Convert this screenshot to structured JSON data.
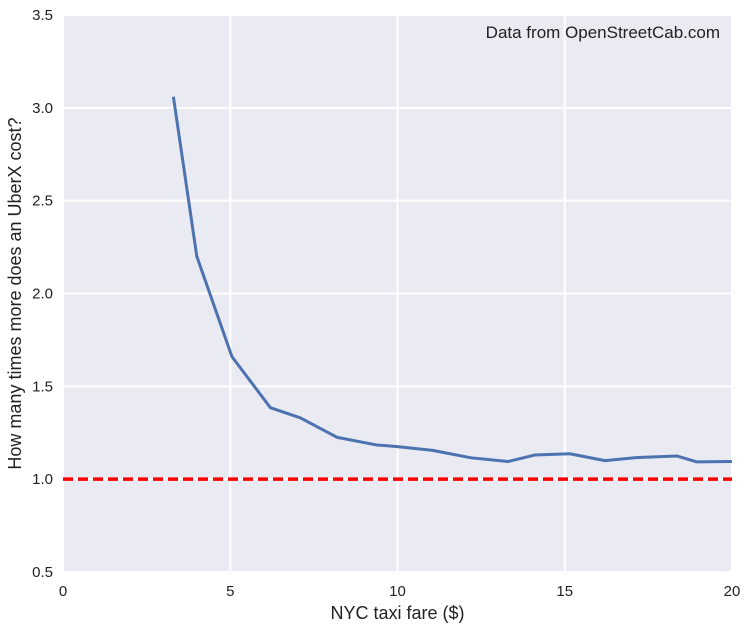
{
  "chart_data": {
    "type": "line",
    "title": "",
    "xlabel": "NYC taxi fare ($)",
    "ylabel": "How many times more does an UberX cost?",
    "xlim": [
      0,
      20
    ],
    "ylim": [
      0.5,
      3.5
    ],
    "xticks": [
      0,
      5,
      10,
      15,
      20
    ],
    "xtick_labels": [
      "0",
      "5",
      "10",
      "15",
      "20"
    ],
    "yticks": [
      0.5,
      1.0,
      1.5,
      2.0,
      2.5,
      3.0,
      3.5
    ],
    "ytick_labels": [
      "0.5",
      "1.0",
      "1.5",
      "2.0",
      "2.5",
      "3.0",
      "3.5"
    ],
    "grid": true,
    "background": "#EAEAF2",
    "annotation": "Data from OpenStreetCab.com",
    "series": [
      {
        "color": "#4C72B0",
        "x": [
          3.3,
          4.0,
          5.05,
          6.2,
          7.1,
          8.2,
          9.35,
          10.0,
          11.05,
          12.2,
          13.3,
          14.1,
          15.15,
          16.2,
          17.2,
          18.35,
          18.95,
          20.0
        ],
        "y": [
          3.06,
          2.2,
          1.66,
          1.385,
          1.33,
          1.225,
          1.185,
          1.175,
          1.155,
          1.115,
          1.095,
          1.13,
          1.137,
          1.1,
          1.117,
          1.125,
          1.093,
          1.095
        ]
      }
    ],
    "reference_line": {
      "y": 1.0,
      "color": "#FF0000",
      "style": "dashed"
    }
  }
}
